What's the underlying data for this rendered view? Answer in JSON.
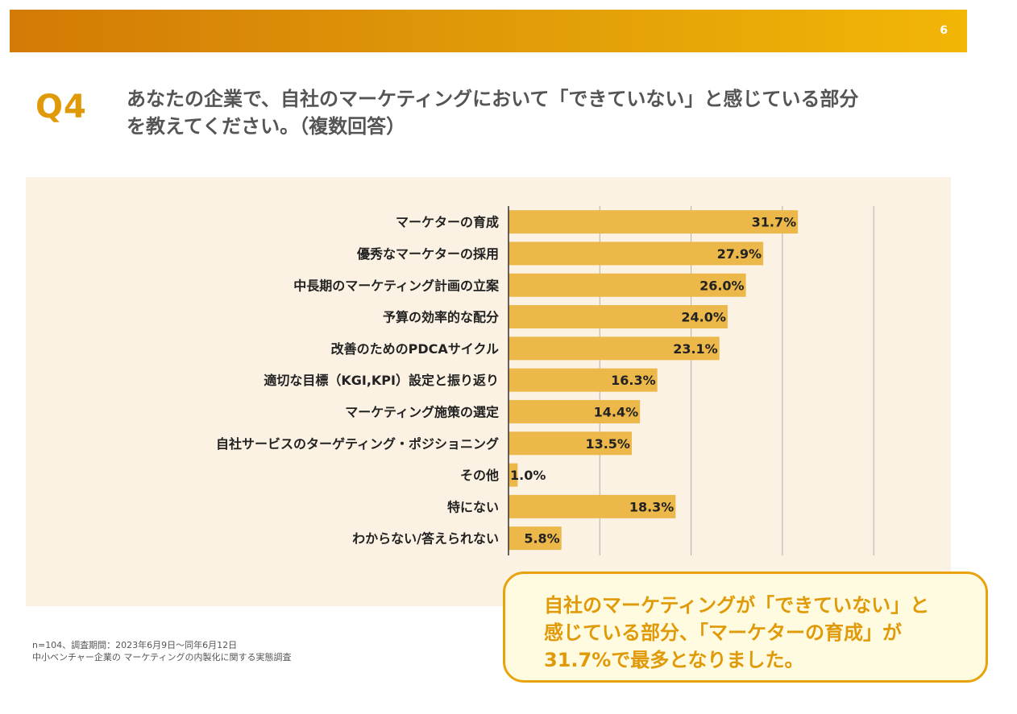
{
  "header": {
    "page_number": "6",
    "accent_color": "#e09a08"
  },
  "question": {
    "label": "Q4",
    "line1": "あなたの企業で、自社のマーケティングにおいて「できていない」と感じている部分",
    "line2": "を教えてください。（複数回答）"
  },
  "chart_data": {
    "type": "bar",
    "orientation": "horizontal",
    "title": "",
    "xlabel": "",
    "ylabel": "",
    "xlim": [
      0,
      40
    ],
    "grid": true,
    "bar_color": "#ecb84a",
    "categories": [
      "マーケターの育成",
      "優秀なマーケターの採用",
      "中長期のマーケティング計画の立案",
      "予算の効率的な配分",
      "改善のためのPDCAサイクル",
      "適切な目標（KGI,KPI）設定と振り返り",
      "マーケティング施策の選定",
      "自社サービスのターゲティング・ポジショニング",
      "その他",
      "特にない",
      "わからない/答えられない"
    ],
    "values": [
      31.7,
      27.9,
      26.0,
      24.0,
      23.1,
      16.3,
      14.4,
      13.5,
      1.0,
      18.3,
      5.8
    ],
    "value_labels": [
      "31.7%",
      "27.9%",
      "26.0%",
      "24.0%",
      "23.1%",
      "16.3%",
      "14.4%",
      "13.5%",
      "1.0%",
      "18.3%",
      "5.8%"
    ]
  },
  "footnote": {
    "line1": "n=104、調査期間：2023年6月9日〜同年6月12日",
    "line2": "中小ベンチャー企業の マーケティングの内製化に関する実態調査"
  },
  "callout": {
    "line1": "自社のマーケティングが「できていない」と",
    "line2": "感じている部分、「マーケターの育成」が",
    "line3": "31.7%で最多となりました。"
  }
}
